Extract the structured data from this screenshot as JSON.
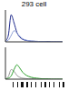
{
  "chart_data": [
    {
      "type": "line",
      "title": "293 cell",
      "x": [
        0,
        5,
        10,
        15,
        20,
        25,
        30,
        35,
        40,
        45,
        50,
        55,
        60,
        65,
        70,
        75,
        80,
        85,
        90,
        95,
        100
      ],
      "xlim": [
        0,
        100
      ],
      "ylim": [
        0,
        100
      ],
      "tick_labels": false,
      "series": [
        {
          "color": "#1f2a8c",
          "values": [
            2,
            20,
            85,
            60,
            30,
            15,
            8,
            5,
            3,
            2,
            2,
            1,
            1,
            1,
            1,
            1,
            0,
            0,
            0,
            0,
            0
          ]
        },
        {
          "color": "#8fa0d8",
          "values": [
            1,
            5,
            20,
            35,
            28,
            18,
            10,
            6,
            4,
            3,
            2,
            2,
            1,
            1,
            1,
            0,
            0,
            0,
            0,
            0,
            0
          ]
        }
      ]
    },
    {
      "type": "line",
      "x": [
        0,
        5,
        10,
        15,
        20,
        25,
        30,
        35,
        40,
        45,
        50,
        55,
        60,
        65,
        70,
        75,
        80,
        85,
        90,
        95,
        100
      ],
      "xlim": [
        0,
        100
      ],
      "ylim": [
        0,
        100
      ],
      "tick_labels": false,
      "series": [
        {
          "color": "#9a9a9a",
          "values": [
            1,
            8,
            30,
            25,
            12,
            6,
            3,
            2,
            1,
            1,
            1,
            0,
            0,
            0,
            0,
            0,
            0,
            0,
            0,
            0,
            0
          ]
        },
        {
          "color": "#2ca02c",
          "values": [
            1,
            3,
            10,
            30,
            45,
            35,
            22,
            14,
            9,
            6,
            4,
            3,
            2,
            1,
            1,
            1,
            0,
            0,
            0,
            0,
            0
          ]
        }
      ]
    }
  ]
}
